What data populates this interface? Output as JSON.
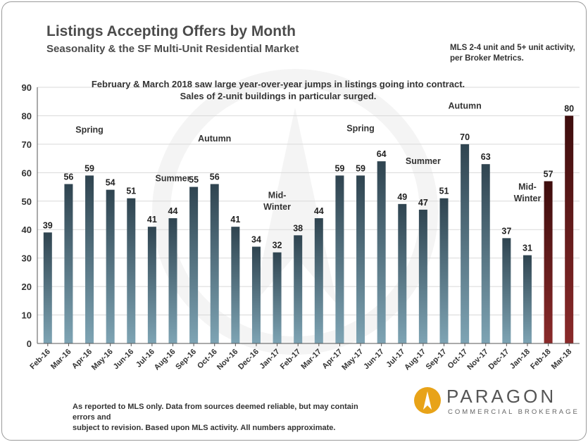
{
  "chart_data": {
    "type": "bar",
    "title": "Listings Accepting Offers by Month",
    "subtitle": "Seasonality & the SF Multi-Unit Residential Market",
    "source_note": "MLS 2-4 unit and 5+ unit activity, per Broker Metrics.",
    "annotation": "February & March 2018 saw large year-over-year jumps in listings going into contract. Sales of 2-unit buildings in particular surged.",
    "annotation_lines": [
      "February & March 2018 saw large year-over-year jumps in listings going into contract.",
      "Sales of 2-unit buildings in particular surged."
    ],
    "categories": [
      "Feb-16",
      "Mar-16",
      "Apr-16",
      "May-16",
      "Jun-16",
      "Jul-16",
      "Aug-16",
      "Sep-16",
      "Oct-16",
      "Nov-16",
      "Dec-16",
      "Jan-17",
      "Feb-17",
      "Mar-17",
      "Apr-17",
      "May-17",
      "Jun-17",
      "Jul-17",
      "Aug-17",
      "Sep-17",
      "Oct-17",
      "Nov-17",
      "Dec-17",
      "Jan-18",
      "Feb-18",
      "Mar-18"
    ],
    "values": [
      39,
      56,
      59,
      54,
      51,
      41,
      44,
      55,
      56,
      41,
      34,
      32,
      38,
      44,
      59,
      59,
      64,
      49,
      47,
      51,
      70,
      63,
      37,
      31,
      57,
      80
    ],
    "ylim": [
      0,
      90
    ],
    "yticks": [
      0,
      10,
      20,
      30,
      40,
      50,
      60,
      70,
      80,
      90
    ],
    "xlabel": "",
    "ylabel": "",
    "grid": true,
    "legend": "none",
    "season_labels": [
      {
        "text": "Spring",
        "category": "Apr-16",
        "value": 74
      },
      {
        "text": "Summer",
        "category": "Aug-16",
        "value": 57
      },
      {
        "text": "Autumn",
        "category": "Oct-16",
        "value": 71
      },
      {
        "text": "Mid-",
        "category": "Jan-17",
        "value": 51
      },
      {
        "text": "Winter",
        "category": "Jan-17",
        "value": 47
      },
      {
        "text": "Spring",
        "category": "May-17",
        "value": 74.5
      },
      {
        "text": "Summer",
        "category": "Aug-17",
        "value": 63
      },
      {
        "text": "Autumn",
        "category": "Oct-17",
        "value": 82.5
      },
      {
        "text": "Mid-",
        "category": "Jan-18",
        "value": 54
      },
      {
        "text": "Winter",
        "category": "Jan-18",
        "value": 50
      }
    ],
    "colors": {
      "bar_top": "#2f4450",
      "bar_bottom": "#7ea4b4",
      "highlight_top": "#3e0d0d",
      "highlight_bottom": "#8a2a2a",
      "highlight_categories": [
        "Feb-18",
        "Mar-18"
      ],
      "grid": "#d9d9d9",
      "axis": "#555555"
    }
  },
  "footer": {
    "line1": "As reported to MLS only. Data from sources deemed reliable, but may contain errors and",
    "line2": "subject to revision. Based upon MLS activity. All numbers approximate."
  },
  "logo": {
    "name": "PARAGON",
    "tagline": "COMMERCIAL BROKERAGE",
    "color": "#e8a318"
  }
}
